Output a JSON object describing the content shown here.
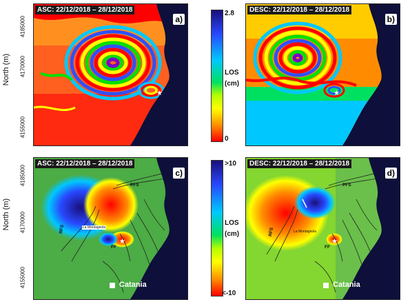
{
  "axis": {
    "title": "North (m)",
    "north_ticks_top": [
      "4185000",
      "4170000",
      "4155000"
    ],
    "north_ticks_bottom": [
      "4185000",
      "4170000",
      "4155000"
    ]
  },
  "panels": [
    {
      "id": "a",
      "title": "ASC: 22/12/2018 – 28/12/2018",
      "letter": "a)"
    },
    {
      "id": "b",
      "title": "DESC: 22/12/2018 – 28/12/2018",
      "letter": "b)"
    },
    {
      "id": "c",
      "title": "ASC: 22/12/2018 – 28/12/2018",
      "letter": "c)"
    },
    {
      "id": "d",
      "title": "DESC: 22/12/2018 – 28/12/2018",
      "letter": "d)"
    }
  ],
  "colorbar_top": {
    "max": "2.8",
    "min": "0",
    "label_line1": "LOS",
    "label_line2": "(cm)"
  },
  "colorbar_bottom": {
    "max": ">10",
    "min": "<-10",
    "label_line1": "LOS",
    "label_line2": "(cm)"
  },
  "map_labels": {
    "pfs": "PFS",
    "rfs": "RFS",
    "ff": "FF",
    "montagnola": "La Montagnola",
    "catania": "Catania"
  },
  "colors": {
    "sea": "#0e0f3a",
    "wrapped_cycle": [
      "#ff0000",
      "#ff8c00",
      "#ffff00",
      "#00e000",
      "#00c8ff",
      "#3050ff",
      "#7a00c8",
      "#ff0000"
    ],
    "los_scale": [
      "#1a0f7a",
      "#2848ff",
      "#00c8ff",
      "#00e060",
      "#b4ff00",
      "#ffff00",
      "#ff8c00",
      "#ff0000"
    ]
  }
}
